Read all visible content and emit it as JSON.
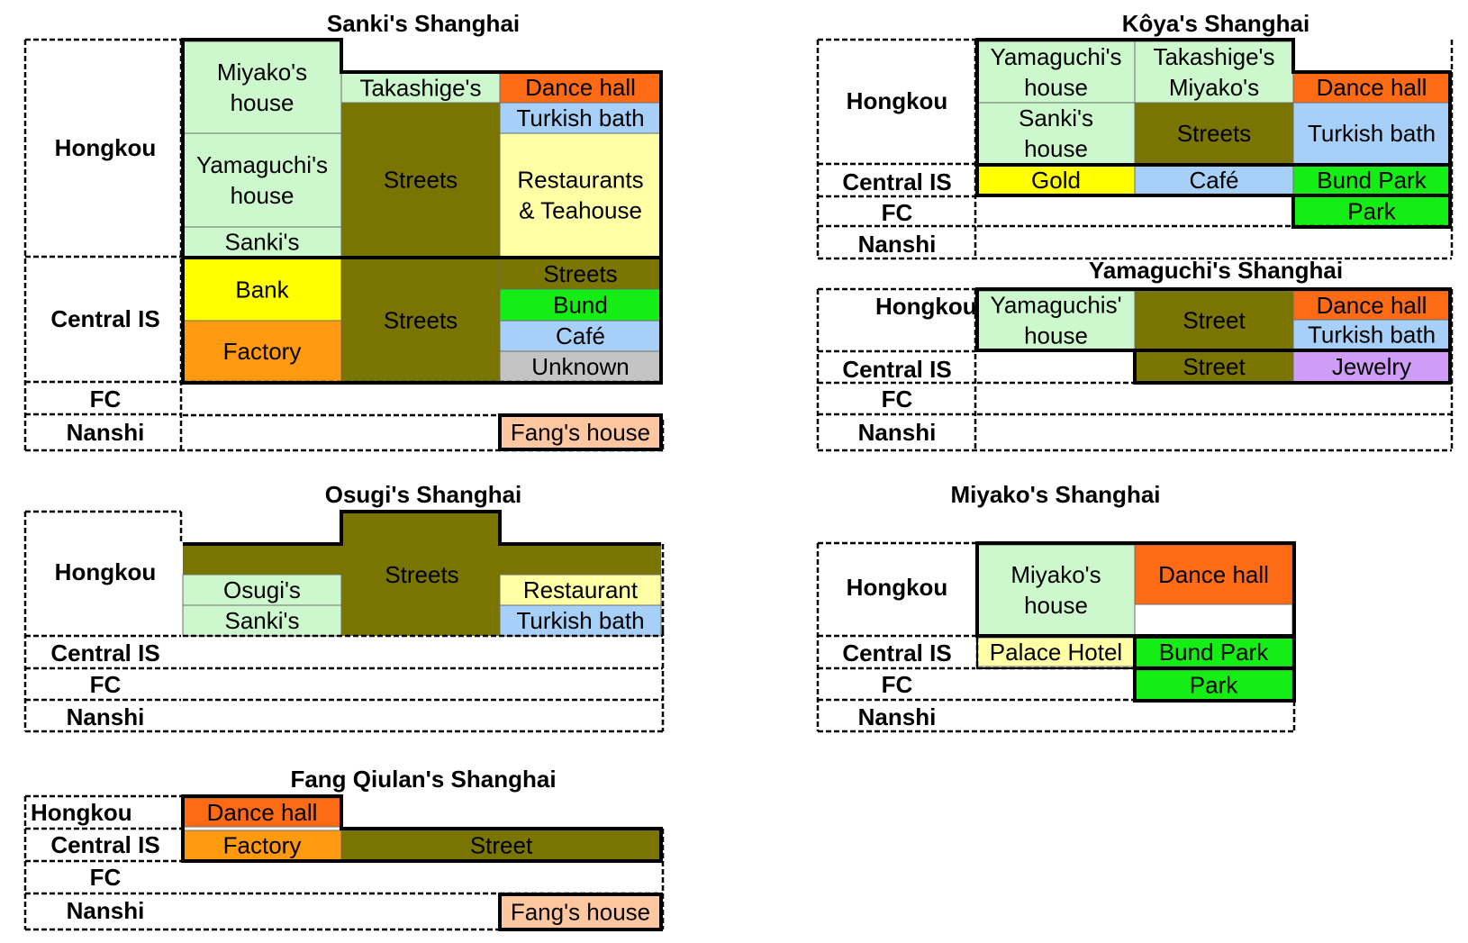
{
  "colors": {
    "house_green": "#cdf7cd",
    "streets_olive": "#7a7400",
    "dance_orange": "#ff6a14",
    "turkish_blue": "#a6d0f7",
    "restaurant_yellow": "#ffffa6",
    "bank_yellow": "#ffff00",
    "factory_orange": "#ff9a10",
    "bund_green": "#14ee14",
    "cafe_blue": "#a6d0f7",
    "unknown_grey": "#c4c4c4",
    "fang_peach": "#ffc7a0",
    "jewelry_purple": "#cf9cf7",
    "palace_yellow": "#ffffa6",
    "white": "#ffffff"
  },
  "maps": [
    {
      "id": "sanki",
      "title": "Sanki's Shanghai",
      "districts": [
        {
          "id": "hongkou",
          "label": "Hongkou"
        },
        {
          "id": "central",
          "label": "Central IS"
        },
        {
          "id": "fc",
          "label": "FC"
        },
        {
          "id": "nanshi",
          "label": "Nanshi"
        }
      ],
      "cells": [
        {
          "id": "miyako-house",
          "lines": [
            "Miyako's",
            "house"
          ],
          "color": "house_green"
        },
        {
          "id": "yamaguchi-house",
          "lines": [
            "Yamaguchi's",
            "house"
          ],
          "color": "house_green"
        },
        {
          "id": "sanki",
          "lines": [
            "Sanki's"
          ],
          "color": "house_green"
        },
        {
          "id": "takashige",
          "lines": [
            "Takashige's"
          ],
          "color": "house_green"
        },
        {
          "id": "streets-hk",
          "lines": [
            "Streets"
          ],
          "color": "streets_olive"
        },
        {
          "id": "dance-hall",
          "lines": [
            "Dance hall"
          ],
          "color": "dance_orange"
        },
        {
          "id": "turkish-bath",
          "lines": [
            "Turkish bath"
          ],
          "color": "turkish_blue"
        },
        {
          "id": "restaurants",
          "lines": [
            "Restaurants",
            "& Teahouse"
          ],
          "color": "restaurant_yellow"
        },
        {
          "id": "bank",
          "lines": [
            "Bank"
          ],
          "color": "bank_yellow"
        },
        {
          "id": "factory",
          "lines": [
            "Factory"
          ],
          "color": "factory_orange"
        },
        {
          "id": "streets-central",
          "lines": [
            "Streets"
          ],
          "color": "streets_olive"
        },
        {
          "id": "streets-right",
          "lines": [
            "Streets"
          ],
          "color": "streets_olive"
        },
        {
          "id": "bund",
          "lines": [
            "Bund"
          ],
          "color": "bund_green"
        },
        {
          "id": "cafe",
          "lines": [
            "Café"
          ],
          "color": "cafe_blue"
        },
        {
          "id": "unknown",
          "lines": [
            "Unknown"
          ],
          "color": "unknown_grey"
        },
        {
          "id": "fang-house",
          "lines": [
            "Fang's house"
          ],
          "color": "fang_peach"
        }
      ]
    },
    {
      "id": "koya",
      "title": "Kôya's Shanghai",
      "districts": [
        {
          "id": "hongkou",
          "label": "Hongkou"
        },
        {
          "id": "central",
          "label": "Central IS"
        },
        {
          "id": "fc",
          "label": "FC"
        },
        {
          "id": "nanshi",
          "label": "Nanshi"
        }
      ],
      "cells": [
        {
          "id": "yamaguchi-house",
          "lines": [
            "Yamaguchi's",
            "house"
          ],
          "color": "house_green"
        },
        {
          "id": "sanki-house",
          "lines": [
            "Sanki's",
            "house"
          ],
          "color": "house_green"
        },
        {
          "id": "takashige-miyako",
          "lines": [
            "Takashige's",
            "Miyako's"
          ],
          "color": "house_green"
        },
        {
          "id": "streets",
          "lines": [
            "Streets"
          ],
          "color": "streets_olive"
        },
        {
          "id": "dance-hall",
          "lines": [
            "Dance hall"
          ],
          "color": "dance_orange"
        },
        {
          "id": "turkish-bath",
          "lines": [
            "Turkish bath"
          ],
          "color": "turkish_blue"
        },
        {
          "id": "gold",
          "lines": [
            "Gold"
          ],
          "color": "bank_yellow"
        },
        {
          "id": "cafe",
          "lines": [
            "Café"
          ],
          "color": "cafe_blue"
        },
        {
          "id": "bund-park",
          "lines": [
            "Bund Park"
          ],
          "color": "bund_green"
        },
        {
          "id": "park",
          "lines": [
            "Park"
          ],
          "color": "bund_green"
        }
      ]
    },
    {
      "id": "yamaguchi",
      "title": "Yamaguchi's Shanghai",
      "districts": [
        {
          "id": "hongkou",
          "label": "Hongkou"
        },
        {
          "id": "central",
          "label": "Central IS"
        },
        {
          "id": "fc",
          "label": "FC"
        },
        {
          "id": "nanshi",
          "label": "Nanshi"
        }
      ],
      "cells": [
        {
          "id": "yamaguchis-house",
          "lines": [
            "Yamaguchis'",
            "house"
          ],
          "color": "house_green"
        },
        {
          "id": "street-hk",
          "lines": [
            "Street"
          ],
          "color": "streets_olive"
        },
        {
          "id": "dance-hall",
          "lines": [
            "Dance hall"
          ],
          "color": "dance_orange"
        },
        {
          "id": "turkish-bath",
          "lines": [
            "Turkish bath"
          ],
          "color": "turkish_blue"
        },
        {
          "id": "street-central",
          "lines": [
            "Street"
          ],
          "color": "streets_olive"
        },
        {
          "id": "jewelry",
          "lines": [
            "Jewelry"
          ],
          "color": "jewelry_purple"
        }
      ]
    },
    {
      "id": "osugi",
      "title": "Osugi's Shanghai",
      "districts": [
        {
          "id": "hongkou",
          "label": "Hongkou"
        },
        {
          "id": "central",
          "label": "Central IS"
        },
        {
          "id": "fc",
          "label": "FC"
        },
        {
          "id": "nanshi",
          "label": "Nanshi"
        }
      ],
      "cells": [
        {
          "id": "streets",
          "lines": [
            "Streets"
          ],
          "color": "streets_olive"
        },
        {
          "id": "osugi",
          "lines": [
            "Osugi's"
          ],
          "color": "house_green"
        },
        {
          "id": "sanki",
          "lines": [
            "Sanki's"
          ],
          "color": "house_green"
        },
        {
          "id": "restaurant",
          "lines": [
            "Restaurant"
          ],
          "color": "restaurant_yellow"
        },
        {
          "id": "turkish-bath",
          "lines": [
            "Turkish bath"
          ],
          "color": "turkish_blue"
        }
      ]
    },
    {
      "id": "miyako",
      "title": "Miyako's Shanghai",
      "districts": [
        {
          "id": "hongkou",
          "label": "Hongkou"
        },
        {
          "id": "central",
          "label": "Central IS"
        },
        {
          "id": "fc",
          "label": "FC"
        },
        {
          "id": "nanshi",
          "label": "Nanshi"
        }
      ],
      "cells": [
        {
          "id": "miyako-house",
          "lines": [
            "Miyako's",
            "house"
          ],
          "color": "house_green"
        },
        {
          "id": "dance-hall",
          "lines": [
            "Dance hall"
          ],
          "color": "dance_orange"
        },
        {
          "id": "blank",
          "lines": [],
          "color": "white"
        },
        {
          "id": "palace-hotel",
          "lines": [
            "Palace Hotel"
          ],
          "color": "palace_yellow"
        },
        {
          "id": "bund-park",
          "lines": [
            "Bund Park"
          ],
          "color": "bund_green"
        },
        {
          "id": "park",
          "lines": [
            "Park"
          ],
          "color": "bund_green"
        }
      ]
    },
    {
      "id": "fang",
      "title": "Fang Qiulan's Shanghai",
      "districts": [
        {
          "id": "hongkou",
          "label": "Hongkou"
        },
        {
          "id": "central",
          "label": "Central IS"
        },
        {
          "id": "fc",
          "label": "FC"
        },
        {
          "id": "nanshi",
          "label": "Nanshi"
        }
      ],
      "cells": [
        {
          "id": "dance-hall",
          "lines": [
            "Dance hall"
          ],
          "color": "dance_orange"
        },
        {
          "id": "factory",
          "lines": [
            "Factory"
          ],
          "color": "factory_orange"
        },
        {
          "id": "street",
          "lines": [
            "Street"
          ],
          "color": "streets_olive"
        },
        {
          "id": "fang-house",
          "lines": [
            "Fang's house"
          ],
          "color": "fang_peach"
        }
      ]
    }
  ]
}
